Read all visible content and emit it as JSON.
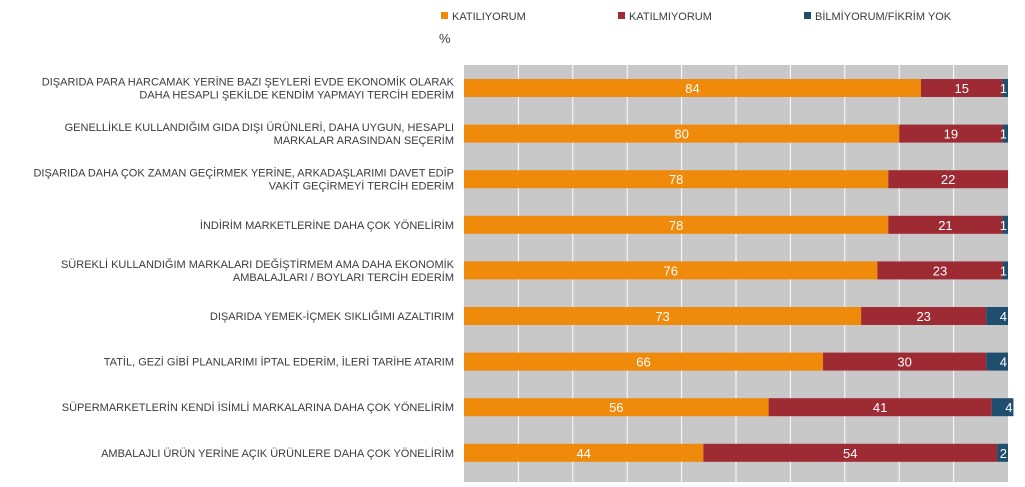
{
  "chart_data": {
    "type": "bar",
    "orientation": "horizontal",
    "stacked": true,
    "unit": "%",
    "xlim": [
      0,
      100
    ],
    "grid": true,
    "legend_position": "top",
    "categories": [
      [
        "DIŞARIDA PARA HARCAMAK YERİNE BAZI ŞEYLERİ EVDE EKONOMİK OLARAK",
        "DAHA HESAPLI ŞEKİLDE KENDİM YAPMAYI TERCİH EDERİM"
      ],
      [
        "GENELLİKLE KULLANDIĞIM GIDA DIŞI ÜRÜNLERİ, DAHA UYGUN, HESAPLI",
        "MARKALAR ARASINDAN SEÇERİM"
      ],
      [
        "DIŞARIDA DAHA ÇOK ZAMAN GEÇİRMEK YERİNE, ARKADAŞLARIMI DAVET EDİP",
        "VAKİT GEÇİRMEYİ TERCİH EDERİM"
      ],
      [
        "İNDİRİM MARKETLERİNE DAHA ÇOK YÖNELİRİM"
      ],
      [
        "SÜREKLİ KULLANDIĞIM MARKALARI DEĞİŞTİRMEM AMA DAHA EKONOMİK",
        "AMBALAJLARI / BOYLARI TERCİH EDERİM"
      ],
      [
        "DIŞARIDA YEMEK-İÇMEK SIKLIĞIMI AZALTIRIM"
      ],
      [
        "TATİL, GEZİ GİBİ PLANLARIMI İPTAL EDERİM, İLERİ TARİHE ATARIM"
      ],
      [
        "SÜPERMARKETLERİN KENDİ İSİMLİ MARKALARINA DAHA ÇOK YÖNELİRİM"
      ],
      [
        "AMBALAJLI ÜRÜN YERİNE AÇIK ÜRÜNLERE DAHA ÇOK YÖNELİRİM"
      ]
    ],
    "series": [
      {
        "name": "KATILIYORUM",
        "color": "#F08A0B",
        "values": [
          84,
          80,
          78,
          78,
          76,
          73,
          66,
          56,
          44
        ]
      },
      {
        "name": "KATILMIYORUM",
        "color": "#9E2A34",
        "values": [
          15,
          19,
          22,
          21,
          23,
          23,
          30,
          41,
          54
        ]
      },
      {
        "name": "BİLMİYORUM/FİKRİM YOK",
        "color": "#1F4E6E",
        "values": [
          1,
          1,
          0,
          1,
          1,
          4,
          4,
          4,
          2
        ]
      }
    ],
    "colors": {
      "plot_background": "#C8C8C8",
      "gridline": "#ffffff"
    }
  }
}
